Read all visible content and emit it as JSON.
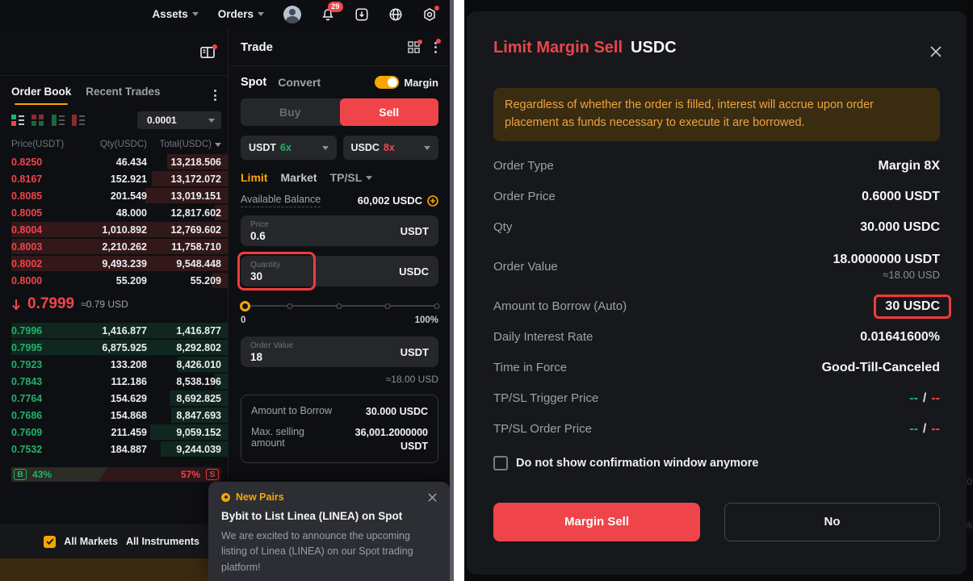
{
  "colors": {
    "red": "#ef454a",
    "green": "#20b26c",
    "yellow": "#f7a600"
  },
  "top_nav": {
    "assets_label": "Assets",
    "orders_label": "Orders",
    "notification_count": "29"
  },
  "left": {
    "order_book": {
      "tab_order_book": "Order Book",
      "tab_recent_trades": "Recent Trades",
      "tick_size": "0.0001",
      "col_price": "Price(USDT)",
      "col_qty": "Qty(USDC)",
      "col_total": "Total(USDC)",
      "asks": [
        {
          "price": "0.8250",
          "qty": "46.434",
          "total": "13,218.506",
          "depth": 28
        },
        {
          "price": "0.8167",
          "qty": "152.921",
          "total": "13,172.072",
          "depth": 35
        },
        {
          "price": "0.8085",
          "qty": "201.549",
          "total": "13,019.151",
          "depth": 38
        },
        {
          "price": "0.8005",
          "qty": "48.000",
          "total": "12,817.602",
          "depth": 6
        },
        {
          "price": "0.8004",
          "qty": "1,010.892",
          "total": "12,769.602",
          "depth": 100
        },
        {
          "price": "0.8003",
          "qty": "2,210.262",
          "total": "11,758.710",
          "depth": 100
        },
        {
          "price": "0.8002",
          "qty": "9,493.239",
          "total": "9,548.448",
          "depth": 100
        },
        {
          "price": "0.8000",
          "qty": "55.209",
          "total": "55.209",
          "depth": 7
        }
      ],
      "last_price": "0.7999",
      "last_price_usd": "≈0.79 USD",
      "bids": [
        {
          "price": "0.7996",
          "qty": "1,416.877",
          "total": "1,416.877",
          "depth": 100
        },
        {
          "price": "0.7995",
          "qty": "6,875.925",
          "total": "8,292.802",
          "depth": 100
        },
        {
          "price": "0.7923",
          "qty": "133.208",
          "total": "8,426.010",
          "depth": 23
        },
        {
          "price": "0.7843",
          "qty": "112.186",
          "total": "8,538.196",
          "depth": 6
        },
        {
          "price": "0.7764",
          "qty": "154.629",
          "total": "8,692.825",
          "depth": 27
        },
        {
          "price": "0.7686",
          "qty": "154.868",
          "total": "8,847.693",
          "depth": 26
        },
        {
          "price": "0.7609",
          "qty": "211.459",
          "total": "9,059.152",
          "depth": 36
        },
        {
          "price": "0.7532",
          "qty": "184.887",
          "total": "9,244.039",
          "depth": 31
        }
      ],
      "buy_label": "B",
      "buy_pct": "43%",
      "sell_pct": "57%",
      "sell_label": "S"
    },
    "filter_bar": {
      "all_markets": "All Markets",
      "all_instruments": "All Instruments"
    }
  },
  "trade_panel": {
    "title": "Trade",
    "tab_spot": "Spot",
    "tab_convert": "Convert",
    "margin_label": "Margin",
    "buy_label": "Buy",
    "sell_label": "Sell",
    "margin_pair": [
      {
        "coin": "USDT",
        "leverage": "6x"
      },
      {
        "coin": "USDC",
        "leverage": "8x"
      }
    ],
    "order_type_tabs": {
      "limit": "Limit",
      "market": "Market",
      "tpsl": "TP/SL"
    },
    "available_balance_label": "Available Balance",
    "available_balance_value": "60,002 USDC",
    "price_field": {
      "label": "Price",
      "value": "0.6",
      "unit": "USDT"
    },
    "qty_field": {
      "label": "Quantity",
      "value": "30",
      "unit": "USDC"
    },
    "slider_min": "0",
    "slider_max": "100%",
    "order_value_field": {
      "label": "Order Value",
      "value": "18",
      "unit": "USDT"
    },
    "order_value_usd": "≈18.00 USD",
    "borrow_label": "Amount to Borrow",
    "borrow_value": "30.000 USDC",
    "max_sell_label": "Max. selling amount",
    "max_sell_value": "36,001.2000000 USDT"
  },
  "notification": {
    "tag": "New Pairs",
    "title": "Bybit to List Linea (LINEA) on Spot",
    "body": "We are excited to announce the upcoming listing of Linea (LINEA) on our Spot trading platform!"
  },
  "modal": {
    "title_accent": "Limit Margin Sell",
    "title_coin": "USDC",
    "warning": "Regardless of whether the order is filled, interest will accrue upon order placement as funds necessary to execute it are borrowed.",
    "tpsl_separator": "/",
    "rows": [
      {
        "label": "Order Type",
        "value": "Margin 8X"
      },
      {
        "label": "Order Price",
        "value": "0.6000 USDT"
      },
      {
        "label": "Qty",
        "value": "30.000 USDC"
      },
      {
        "label": "Order Value",
        "value": "18.0000000 USDT",
        "sub": "≈18.00 USD"
      },
      {
        "label": "Amount to Borrow (Auto)",
        "value": "30 USDC",
        "highlight": true
      },
      {
        "label": "Daily Interest Rate",
        "value": "0.01641600%"
      },
      {
        "label": "Time in Force",
        "value": "Good-Till-Canceled"
      },
      {
        "label": "TP/SL Trigger Price",
        "tp": "--",
        "sl": "--"
      },
      {
        "label": "TP/SL Order Price",
        "tp": "--",
        "sl": "--"
      }
    ],
    "checkbox_label": "Do not show confirmation window anymore",
    "confirm_label": "Margin Sell",
    "cancel_label": "No"
  },
  "background_fragments": {
    "f1": "00",
    "f2": "%"
  }
}
